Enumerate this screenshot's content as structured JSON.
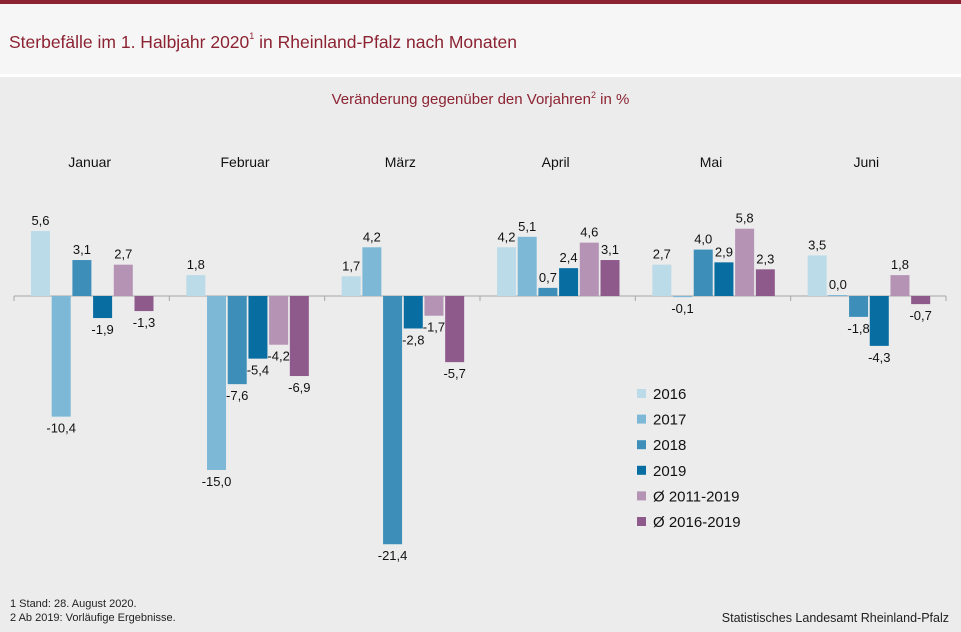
{
  "header": {
    "title_main": "Sterbefälle im 1. Halbjahr 2020",
    "title_sup": "1",
    "title_rest": " in Rheinland-Pfalz nach Monaten"
  },
  "footnotes": {
    "note1": "1 Stand: 28. August 2020.",
    "note2": "2 Ab 2019: Vorläufige Ergebnisse."
  },
  "source": "Statistisches Landesamt Rheinland-Pfalz",
  "chart_data": {
    "type": "bar",
    "title": "Veränderung gegenüber den Vorjahren",
    "title_sup": "2",
    "title_unit": " in %",
    "categories": [
      "Januar",
      "Februar",
      "März",
      "April",
      "Mai",
      "Juni"
    ],
    "series": [
      {
        "name": "2016",
        "color": "#bcdbe8",
        "values": [
          5.6,
          1.8,
          1.7,
          4.2,
          2.7,
          3.5
        ]
      },
      {
        "name": "2017",
        "color": "#7db9d7",
        "values": [
          -10.4,
          -15.0,
          4.2,
          5.1,
          -0.1,
          0.0
        ]
      },
      {
        "name": "2018",
        "color": "#3d8fba",
        "values": [
          3.1,
          -7.6,
          -21.4,
          0.7,
          4.0,
          -1.8
        ]
      },
      {
        "name": "2019",
        "color": "#086da1",
        "values": [
          -1.9,
          -5.4,
          -2.8,
          2.4,
          2.9,
          -4.3
        ]
      },
      {
        "name": "Ø 2011-2019",
        "color": "#b493b5",
        "values": [
          2.7,
          -4.2,
          -1.7,
          4.6,
          5.8,
          1.8
        ]
      },
      {
        "name": "Ø 2016-2019",
        "color": "#8e5a8c",
        "values": [
          -1.3,
          -6.9,
          -5.7,
          3.1,
          2.3,
          -0.7
        ]
      }
    ],
    "value_labels": [
      [
        "5,6",
        "-10,4",
        "3,1",
        "-1,9",
        "2,7",
        "-1,3"
      ],
      [
        "1,8",
        "-15,0",
        "-7,6",
        "-5,4",
        "-4,2",
        "-6,9"
      ],
      [
        "1,7",
        "4,2",
        "-21,4",
        "-2,8",
        "-1,7",
        "-5,7"
      ],
      [
        "4,2",
        "5,1",
        "0,7",
        "2,4",
        "4,6",
        "3,1"
      ],
      [
        "2,7",
        "-0,1",
        "4,0",
        "2,9",
        "5,8",
        "2,3"
      ],
      [
        "3,5",
        "0,0",
        "-1,8",
        "-4,3",
        "1,8",
        "-0,7"
      ]
    ],
    "ylim": [
      -21.4,
      5.8
    ],
    "legend_position": "center-right",
    "grid": false
  }
}
